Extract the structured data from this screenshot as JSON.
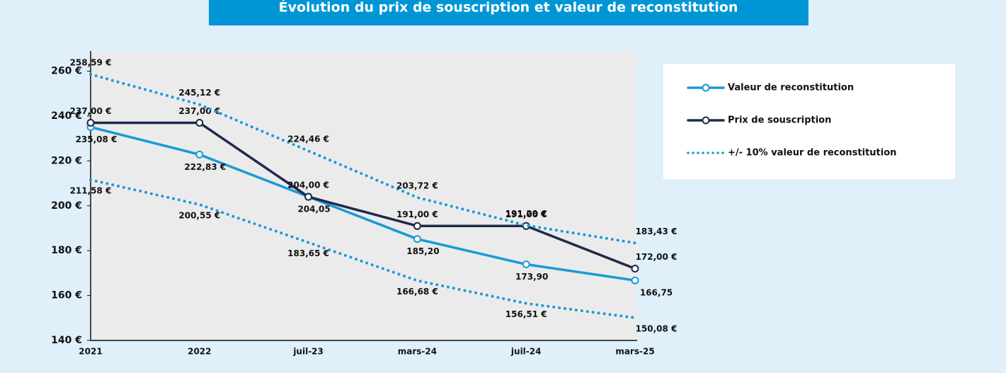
{
  "chart_data": {
    "type": "line",
    "title": "Évolution du prix de souscription et valeur de reconstitution",
    "categories": [
      "2021",
      "2022",
      "juil-23",
      "mars-24",
      "juil-24",
      "mars-25"
    ],
    "series": [
      {
        "name": "Valeur de reconstitution",
        "color": "#1a9ad6",
        "style": "solid",
        "markers": true,
        "values": [
          235.08,
          222.83,
          204.05,
          185.2,
          173.9,
          166.75
        ],
        "value_labels": [
          "235,08 €",
          "222,83 €",
          "204,05",
          "185,20",
          "173,90",
          "166,75"
        ]
      },
      {
        "name": "Prix de souscription",
        "color": "#1f2a4a",
        "style": "solid",
        "markers": true,
        "values": [
          237,
          237,
          204,
          191,
          191,
          172
        ],
        "value_labels": [
          "237,00 €",
          "237,00 €",
          "204,00 €",
          "191,00 €",
          "191,00 €",
          "172,00 €"
        ]
      },
      {
        "name": "+/- 10% valeur de reconstitution",
        "color": "#1a9ad6",
        "style": "dotted",
        "markers": false,
        "values": [
          258.59,
          245.12,
          224.46,
          203.72,
          191.29,
          183.43
        ],
        "value_labels": [
          "258,59 €",
          "245,12 €",
          "224,46 €",
          "203,72 €",
          "191,29 €",
          "183,43 €"
        ]
      },
      {
        "color": "#1a9ad6",
        "style": "dotted",
        "markers": false,
        "values": [
          211.58,
          200.55,
          183.65,
          166.68,
          156.51,
          150.08
        ],
        "value_labels": [
          "211,58 €",
          "200,55 €",
          "183,65 €",
          "166,68 €",
          "156,51 €",
          "150,08 €"
        ]
      }
    ],
    "ylim": [
      140,
      269
    ],
    "yticks": [
      {
        "value": 140,
        "label": "140 €"
      },
      {
        "value": 160,
        "label": "160 €"
      },
      {
        "value": 180,
        "label": "180 €"
      },
      {
        "value": 200,
        "label": "200 €"
      },
      {
        "value": 220,
        "label": "220 €"
      },
      {
        "value": 240,
        "label": "240 €"
      },
      {
        "value": 260,
        "label": "260 €"
      }
    ],
    "legend": "right"
  }
}
